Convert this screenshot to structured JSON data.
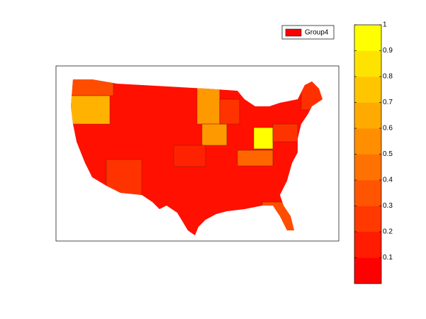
{
  "legend": {
    "label": "Group4",
    "color": "#ff0000"
  },
  "colorbar": {
    "ylim": [
      0,
      1
    ],
    "yticks": [
      0.1,
      0.2,
      0.3,
      0.4,
      0.5,
      0.6,
      0.7,
      0.8,
      0.9,
      1
    ],
    "colormap": [
      "#ff0000",
      "#ff1c00",
      "#ff3900",
      "#ff5500",
      "#ff7100",
      "#ff8e00",
      "#ffaa00",
      "#ffc600",
      "#ffe300",
      "#ffff00"
    ]
  }
}
